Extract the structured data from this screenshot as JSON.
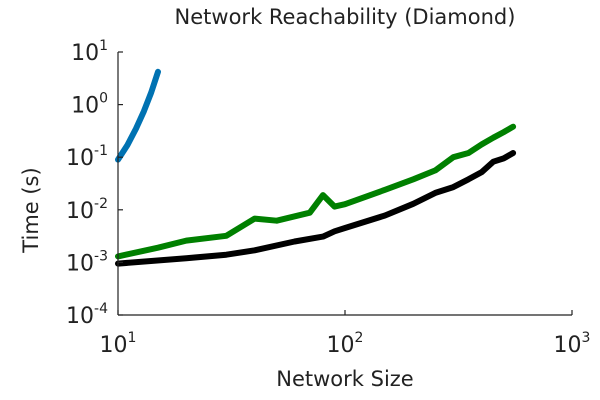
{
  "chart_data": {
    "type": "line",
    "title": "Network Reachability (Diamond)",
    "xlabel": "Network Size",
    "ylabel": "Time (s)",
    "xscale": "log",
    "yscale": "log",
    "xlim": [
      10,
      1000
    ],
    "ylim": [
      0.0001,
      10
    ],
    "grid": false,
    "legend": "none",
    "x_ticks": [
      {
        "base": "10",
        "exp": "1"
      },
      {
        "base": "10",
        "exp": "2"
      },
      {
        "base": "10",
        "exp": "3"
      }
    ],
    "y_ticks": [
      {
        "base": "10",
        "exp": "1"
      },
      {
        "base": "10",
        "exp": "0"
      },
      {
        "base": "10",
        "exp": "-1"
      },
      {
        "base": "10",
        "exp": "-2"
      },
      {
        "base": "10",
        "exp": "-3"
      },
      {
        "base": "10",
        "exp": "-4"
      }
    ],
    "series": [
      {
        "color": "#0072b2",
        "points": [
          [
            10,
            0.09
          ],
          [
            11,
            0.17
          ],
          [
            12,
            0.35
          ],
          [
            13,
            0.75
          ],
          [
            14,
            1.7
          ],
          [
            15,
            4.2
          ]
        ]
      },
      {
        "color": "#008000",
        "points": [
          [
            10,
            0.0013
          ],
          [
            15,
            0.0019
          ],
          [
            20,
            0.0026
          ],
          [
            30,
            0.0032
          ],
          [
            40,
            0.0068
          ],
          [
            50,
            0.0062
          ],
          [
            70,
            0.0088
          ],
          [
            80,
            0.019
          ],
          [
            90,
            0.0115
          ],
          [
            100,
            0.0128
          ],
          [
            150,
            0.024
          ],
          [
            200,
            0.038
          ],
          [
            250,
            0.056
          ],
          [
            300,
            0.1
          ],
          [
            350,
            0.12
          ],
          [
            400,
            0.175
          ],
          [
            450,
            0.235
          ],
          [
            500,
            0.3
          ],
          [
            550,
            0.38
          ]
        ]
      },
      {
        "color": "#000000",
        "points": [
          [
            10,
            0.00095
          ],
          [
            20,
            0.0012
          ],
          [
            30,
            0.0014
          ],
          [
            40,
            0.0017
          ],
          [
            60,
            0.0025
          ],
          [
            80,
            0.0031
          ],
          [
            90,
            0.0039
          ],
          [
            100,
            0.0045
          ],
          [
            150,
            0.0078
          ],
          [
            200,
            0.013
          ],
          [
            250,
            0.021
          ],
          [
            300,
            0.027
          ],
          [
            350,
            0.038
          ],
          [
            400,
            0.052
          ],
          [
            450,
            0.082
          ],
          [
            500,
            0.095
          ],
          [
            550,
            0.12
          ]
        ]
      }
    ]
  }
}
